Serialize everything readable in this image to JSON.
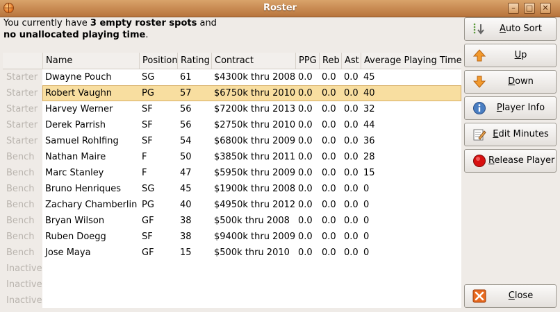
{
  "window": {
    "title": "Roster"
  },
  "message": {
    "line1_pre": "You currently have ",
    "line1_bold": "3 empty roster spots",
    "line1_post": " and",
    "line2_bold": "no unallocated playing time",
    "line2_post": "."
  },
  "columns": {
    "name": "Name",
    "position": "Position",
    "rating": "Rating",
    "contract": "Contract",
    "ppg": "PPG",
    "reb": "Reb",
    "ast": "Ast",
    "apt": "Average Playing Time"
  },
  "roles": [
    "Starter",
    "Starter",
    "Starter",
    "Starter",
    "Starter",
    "Bench",
    "Bench",
    "Bench",
    "Bench",
    "Bench",
    "Bench",
    "Bench",
    "Inactive",
    "Inactive",
    "Inactive"
  ],
  "players": [
    {
      "name": "Dwayne Pouch",
      "position": "SG",
      "rating": "61",
      "contract": "$4300k thru 2008",
      "ppg": "0.0",
      "reb": "0.0",
      "ast": "0.0",
      "apt": "45"
    },
    {
      "name": "Robert Vaughn",
      "position": "PG",
      "rating": "57",
      "contract": "$6750k thru 2010",
      "ppg": "0.0",
      "reb": "0.0",
      "ast": "0.0",
      "apt": "40"
    },
    {
      "name": "Harvey Werner",
      "position": "SF",
      "rating": "56",
      "contract": "$7200k thru 2013",
      "ppg": "0.0",
      "reb": "0.0",
      "ast": "0.0",
      "apt": "32"
    },
    {
      "name": "Derek Parrish",
      "position": "SF",
      "rating": "56",
      "contract": "$2750k thru 2010",
      "ppg": "0.0",
      "reb": "0.0",
      "ast": "0.0",
      "apt": "44"
    },
    {
      "name": "Samuel Rohlfing",
      "position": "SF",
      "rating": "54",
      "contract": "$6800k thru 2009",
      "ppg": "0.0",
      "reb": "0.0",
      "ast": "0.0",
      "apt": "36"
    },
    {
      "name": "Nathan Maire",
      "position": "F",
      "rating": "50",
      "contract": "$3850k thru 2011",
      "ppg": "0.0",
      "reb": "0.0",
      "ast": "0.0",
      "apt": "28"
    },
    {
      "name": "Marc Stanley",
      "position": "F",
      "rating": "47",
      "contract": "$5950k thru 2009",
      "ppg": "0.0",
      "reb": "0.0",
      "ast": "0.0",
      "apt": "15"
    },
    {
      "name": "Bruno Henriques",
      "position": "SG",
      "rating": "45",
      "contract": "$1900k thru 2008",
      "ppg": "0.0",
      "reb": "0.0",
      "ast": "0.0",
      "apt": "0"
    },
    {
      "name": "Zachary Chamberlin",
      "position": "PG",
      "rating": "40",
      "contract": "$4950k thru 2012",
      "ppg": "0.0",
      "reb": "0.0",
      "ast": "0.0",
      "apt": "0"
    },
    {
      "name": "Bryan Wilson",
      "position": "GF",
      "rating": "38",
      "contract": "$500k thru 2008",
      "ppg": "0.0",
      "reb": "0.0",
      "ast": "0.0",
      "apt": "0"
    },
    {
      "name": "Ruben Doegg",
      "position": "SF",
      "rating": "38",
      "contract": "$9400k thru 2009",
      "ppg": "0.0",
      "reb": "0.0",
      "ast": "0.0",
      "apt": "0"
    },
    {
      "name": "Jose Maya",
      "position": "GF",
      "rating": "15",
      "contract": "$500k thru 2010",
      "ppg": "0.0",
      "reb": "0.0",
      "ast": "0.0",
      "apt": "0"
    }
  ],
  "selected_row": 1,
  "buttons": [
    {
      "key": "A",
      "rest": "uto Sort",
      "icon": "sort-icon"
    },
    {
      "key": "U",
      "rest": "p",
      "icon": "arrow-up-icon"
    },
    {
      "key": "D",
      "rest": "own",
      "icon": "arrow-down-icon"
    },
    {
      "key": "P",
      "rest": "layer Info",
      "icon": "info-icon"
    },
    {
      "key": "E",
      "rest": "dit Minutes",
      "icon": "edit-icon"
    },
    {
      "key": "R",
      "rest": "elease Player",
      "icon": "release-icon"
    }
  ],
  "close_button": {
    "key": "C",
    "rest": "lose",
    "icon": "close-icon"
  },
  "colors": {
    "selection": "#f8dea0",
    "titlebar": "#c98a4f",
    "role_text": "#b9b4ae"
  }
}
